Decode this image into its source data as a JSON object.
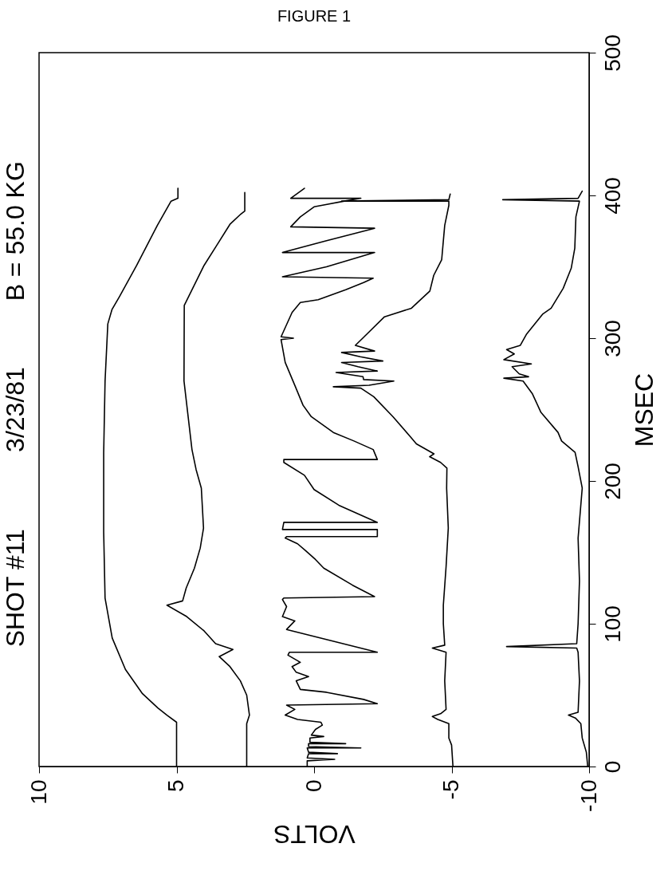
{
  "chart_data": {
    "type": "line",
    "title": "FIGURE 1",
    "annotations": [
      "SHOT #11",
      "3/23/81",
      "B = 55.0 KG"
    ],
    "xlabel": "VOLTS",
    "ylabel": "MSEC",
    "xlim": [
      10,
      -10
    ],
    "xticks": [
      10,
      5,
      0,
      -5,
      -10
    ],
    "ylim": [
      0,
      500
    ],
    "yticks": [
      0,
      100,
      200,
      300,
      400,
      500
    ],
    "grid": false,
    "legend": false,
    "line_style": "solid",
    "series": [
      {
        "color": "#000000",
        "values": [
          0,
          31,
          36,
          41,
          51,
          68,
          90,
          118,
          164,
          220,
          270,
          310,
          320,
          329,
          351,
          379,
          396,
          398,
          405
        ],
        "x": [
          5.0,
          5.0,
          5.35,
          5.68,
          6.24,
          6.86,
          7.34,
          7.6,
          7.65,
          7.65,
          7.6,
          7.5,
          7.35,
          7.08,
          6.45,
          5.7,
          5.2,
          4.95,
          4.95
        ]
      },
      {
        "color": "#000000",
        "values": [
          0,
          30,
          36,
          50,
          60,
          70,
          77,
          82,
          86,
          95,
          105,
          113,
          116,
          125,
          139,
          153,
          167,
          195,
          208,
          222,
          270,
          323,
          351,
          365,
          380,
          387,
          389,
          402
        ],
        "x": [
          2.45,
          2.45,
          2.35,
          2.45,
          2.68,
          3.06,
          3.45,
          2.95,
          3.58,
          4.0,
          4.63,
          5.35,
          4.78,
          4.65,
          4.35,
          4.14,
          4.02,
          4.1,
          4.29,
          4.44,
          4.73,
          4.72,
          4.0,
          3.54,
          3.05,
          2.66,
          2.52,
          2.52
        ]
      },
      {
        "color": "#000000",
        "values": [
          0,
          4,
          5,
          6,
          9,
          9,
          10,
          13,
          13,
          14,
          16,
          16,
          17,
          20,
          21,
          22,
          26,
          29,
          31,
          33,
          36,
          40,
          43,
          44,
          47,
          52,
          54,
          60,
          63,
          66,
          70,
          73,
          78,
          80,
          80,
          96,
          102,
          105,
          112,
          117,
          118,
          119,
          127,
          139,
          145,
          151,
          156,
          160,
          161,
          161,
          166,
          166,
          171,
          171,
          183,
          194,
          204,
          213,
          215,
          215,
          222,
          228,
          234,
          245,
          253,
          267,
          283,
          299,
          300,
          301,
          318,
          325,
          327,
          334,
          339,
          342,
          343,
          350,
          360,
          360,
          368,
          377,
          378,
          385,
          392,
          396,
          398,
          398,
          405
        ],
        "x": [
          0.25,
          0.25,
          -0.75,
          0.25,
          0.2,
          -0.85,
          0.2,
          0.25,
          -1.7,
          0.2,
          0.2,
          -1.15,
          0.15,
          0.15,
          -0.35,
          0.1,
          -0.05,
          -0.3,
          -0.25,
          0.6,
          1.05,
          0.7,
          1.0,
          -2.3,
          -1.8,
          -0.45,
          0.5,
          0.65,
          0.2,
          0.65,
          0.8,
          0.5,
          0.95,
          0.9,
          -2.3,
          1.0,
          0.7,
          1.15,
          1.0,
          1.15,
          1.1,
          -2.2,
          -1.4,
          -0.35,
          -0.05,
          0.3,
          0.6,
          1.05,
          1.0,
          -2.3,
          -2.3,
          1.15,
          1.1,
          -2.3,
          -0.9,
          0.0,
          0.35,
          1.1,
          1.1,
          -2.3,
          -2.15,
          -1.45,
          -0.7,
          0.1,
          0.4,
          0.7,
          1.05,
          1.2,
          0.75,
          1.2,
          0.8,
          0.5,
          -0.15,
          -1.15,
          -1.8,
          -2.15,
          1.15,
          -0.45,
          -2.2,
          1.15,
          -0.4,
          -2.2,
          0.85,
          0.5,
          0.0,
          -1.1,
          -1.7,
          0.85,
          0.35
        ]
      },
      {
        "color": "#000000",
        "values": [
          0,
          15,
          20,
          30,
          33,
          35,
          37,
          40,
          60,
          80,
          83,
          85,
          100,
          113,
          140,
          167,
          195,
          209,
          213,
          217,
          219,
          226,
          231,
          245,
          259,
          265,
          266,
          267,
          270,
          271,
          273,
          276,
          277,
          280,
          283,
          284,
          287,
          290,
          291,
          295,
          301,
          315,
          321,
          333,
          344,
          355,
          379,
          393,
          396,
          396,
          397,
          401
        ],
        "x": [
          -5.05,
          -5.0,
          -4.9,
          -4.9,
          -4.5,
          -4.3,
          -4.6,
          -4.8,
          -4.75,
          -4.8,
          -4.3,
          -4.75,
          -4.7,
          -4.7,
          -4.8,
          -4.88,
          -4.82,
          -4.83,
          -4.6,
          -4.2,
          -4.36,
          -3.72,
          -3.5,
          -2.87,
          -2.17,
          -1.7,
          -0.7,
          -2.0,
          -2.9,
          -1.8,
          -1.78,
          -0.8,
          -2.3,
          -1.6,
          -1.0,
          -2.5,
          -1.68,
          -1.0,
          -2.2,
          -1.5,
          -1.82,
          -2.56,
          -3.54,
          -4.21,
          -4.35,
          -4.64,
          -4.75,
          -4.9,
          -4.9,
          -1.0,
          -4.9,
          -4.95
        ]
      },
      {
        "color": "#000000",
        "values": [
          0,
          10,
          20,
          30,
          34,
          36,
          38,
          60,
          80,
          83,
          84,
          86,
          100,
          130,
          160,
          195,
          210,
          220,
          228,
          234,
          248,
          261,
          270,
          272,
          273,
          275,
          280,
          282,
          285,
          289,
          292,
          295,
          303,
          317,
          321,
          335,
          349,
          363,
          385,
          396,
          397,
          398,
          403
        ],
        "x": [
          -9.95,
          -9.9,
          -9.75,
          -9.7,
          -9.5,
          -9.25,
          -9.6,
          -9.65,
          -9.6,
          -9.55,
          -7.0,
          -9.55,
          -9.6,
          -9.65,
          -9.6,
          -9.75,
          -9.6,
          -9.49,
          -9.0,
          -8.87,
          -8.25,
          -7.94,
          -7.6,
          -6.9,
          -7.8,
          -7.46,
          -7.2,
          -7.9,
          -6.9,
          -7.28,
          -7.0,
          -7.5,
          -7.73,
          -8.32,
          -8.62,
          -9.06,
          -9.35,
          -9.48,
          -9.52,
          -9.65,
          -6.86,
          -9.6,
          -9.75
        ]
      }
    ]
  }
}
